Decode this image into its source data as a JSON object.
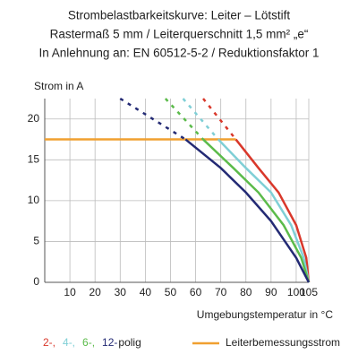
{
  "chart_data": {
    "type": "line",
    "title_lines": [
      "Strombelastbarkeitskurve: Leiter – Lötstift",
      "Rastermaß 5 mm / Leiterquerschnitt 1,5 mm² „e“",
      "In Anlehnung an: EN 60512-5-2 / Reduktionsfaktor 1"
    ],
    "y_label": "Strom in A",
    "x_label": "Umgebungstemperatur in °C",
    "xlim": [
      0,
      105
    ],
    "ylim": [
      0,
      22.5
    ],
    "xticks": [
      10,
      20,
      30,
      40,
      50,
      60,
      70,
      80,
      90,
      100,
      105
    ],
    "yticks": [
      0,
      5,
      10,
      15,
      20
    ],
    "grid": true,
    "series": [
      {
        "name": "2-,",
        "color": "#d9382b",
        "x": [
          76,
          85,
          93,
          100,
          104,
          105
        ],
        "values": [
          17.5,
          14,
          11,
          7,
          3,
          0
        ],
        "dash_x": [
          63,
          76
        ],
        "dash_values": [
          22.5,
          17.5
        ]
      },
      {
        "name": "4-,",
        "color": "#7fcfd6",
        "x": [
          69,
          80,
          90,
          98,
          103,
          105
        ],
        "values": [
          17.5,
          14,
          11,
          7,
          3,
          0
        ],
        "dash_x": [
          55,
          69
        ],
        "dash_values": [
          22.5,
          17.5
        ]
      },
      {
        "name": "6-,",
        "color": "#5bbb4a",
        "x": [
          63,
          75,
          85,
          95,
          102,
          105
        ],
        "values": [
          17.5,
          14,
          11,
          7,
          3,
          0
        ],
        "dash_x": [
          48,
          63
        ],
        "dash_values": [
          22.5,
          17.5
        ]
      },
      {
        "name": "12-",
        "color": "#232a74",
        "x": [
          56,
          70,
          80,
          90,
          100,
          105
        ],
        "values": [
          17.5,
          14,
          11,
          7.5,
          3,
          0
        ],
        "dash_x": [
          30,
          56
        ],
        "dash_values": [
          22.5,
          17.5
        ]
      }
    ],
    "legend_suffix": "polig",
    "reference": {
      "name": "Leiterbemessungsstrom",
      "color": "#f0a030",
      "x": [
        0,
        76
      ],
      "values": [
        17.5,
        17.5
      ]
    }
  }
}
